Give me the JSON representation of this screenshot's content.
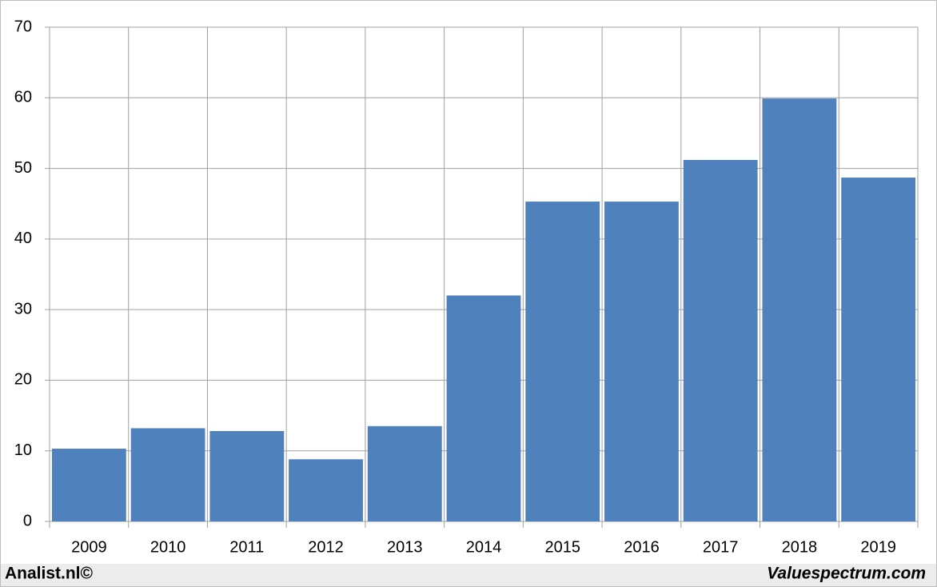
{
  "chart_data": {
    "type": "bar",
    "categories": [
      "2009",
      "2010",
      "2011",
      "2012",
      "2013",
      "2014",
      "2015",
      "2016",
      "2017",
      "2018",
      "2019"
    ],
    "values": [
      10.3,
      13.2,
      12.8,
      8.8,
      13.5,
      32.0,
      45.3,
      45.3,
      51.2,
      59.9,
      48.7
    ],
    "color": "#4f81bd",
    "ylim": [
      0,
      70
    ],
    "yticks": [
      0,
      10,
      20,
      30,
      40,
      50,
      60,
      70
    ],
    "grid": true,
    "footer_left": "Analist.nl©",
    "footer_right": "Valuespectrum.com"
  }
}
